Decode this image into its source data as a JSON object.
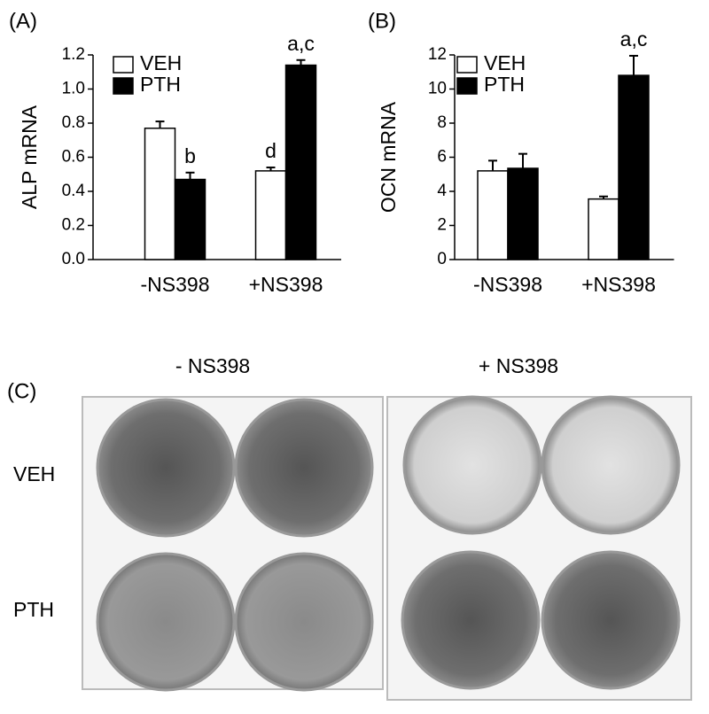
{
  "chart_data": [
    {
      "type": "bar",
      "panel_label": "(A)",
      "y_label": "ALP mRNA",
      "categories": [
        "-NS398",
        "+NS398"
      ],
      "series": [
        {
          "name": "VEH",
          "color": "#ffffff",
          "values": [
            0.77,
            0.52
          ],
          "errors": [
            0.04,
            0.02
          ],
          "annotations": [
            null,
            "d"
          ]
        },
        {
          "name": "PTH",
          "color": "#000000",
          "values": [
            0.47,
            1.14
          ],
          "errors": [
            0.04,
            0.03
          ],
          "annotations": [
            "b",
            "a,c"
          ]
        }
      ],
      "ylim": [
        0,
        1.2
      ],
      "yticks": [
        {
          "value": 0,
          "label": "0.0"
        },
        0.2,
        0.4,
        0.6,
        0.8,
        {
          "value": 1,
          "label": "1.0"
        },
        1.2
      ]
    },
    {
      "type": "bar",
      "panel_label": "(B)",
      "y_label": "OCN mRNA",
      "categories": [
        "-NS398",
        "+NS398"
      ],
      "series": [
        {
          "name": "VEH",
          "color": "#ffffff",
          "values": [
            5.2,
            3.55
          ],
          "errors": [
            0.6,
            0.15
          ],
          "annotations": [
            null,
            null
          ]
        },
        {
          "name": "PTH",
          "color": "#000000",
          "values": [
            5.35,
            10.8
          ],
          "errors": [
            0.85,
            1.15
          ],
          "annotations": [
            null,
            "a,c"
          ]
        }
      ],
      "ylim": [
        0,
        12
      ],
      "yticks": [
        0,
        2,
        4,
        6,
        8,
        10,
        12
      ]
    }
  ],
  "panel_c": {
    "panel_label": "(C)",
    "columns": [
      "- NS398",
      "+ NS398"
    ],
    "rows": [
      "VEH",
      "PTH"
    ]
  }
}
